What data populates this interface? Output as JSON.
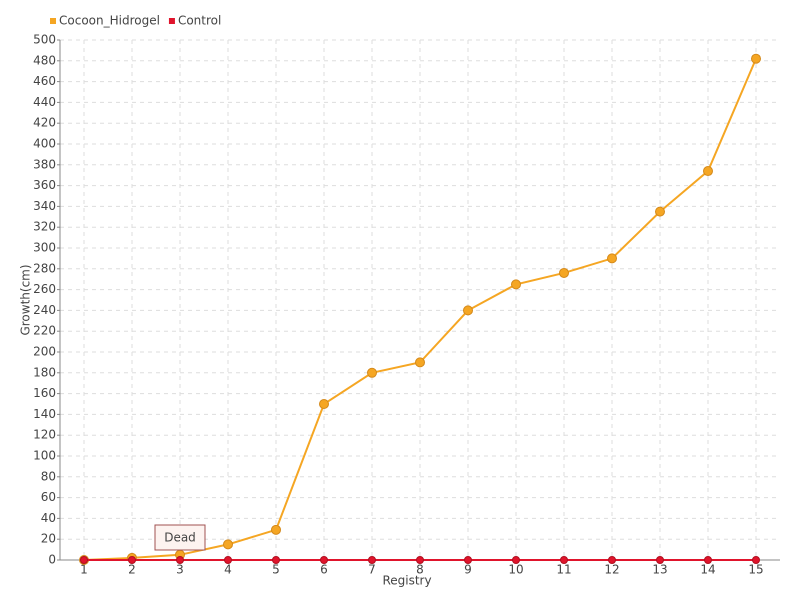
{
  "chart_data": {
    "type": "line",
    "categories": [
      "1",
      "2",
      "3",
      "4",
      "5",
      "6",
      "7",
      "8",
      "9",
      "10",
      "11",
      "12",
      "13",
      "14",
      "15"
    ],
    "series": [
      {
        "name": "Cocoon_Hidrogel",
        "color": "#f5a623",
        "values": [
          0,
          2,
          5,
          15,
          29,
          150,
          180,
          190,
          240,
          265,
          276,
          290,
          335,
          374,
          482
        ]
      },
      {
        "name": "Control",
        "color": "#e0142c",
        "values": [
          0,
          0,
          0,
          0,
          0,
          0,
          0,
          0,
          0,
          0,
          0,
          0,
          0,
          0,
          0
        ]
      }
    ],
    "annotation": "Dead",
    "x_label": "Registry",
    "y_label": "Growth(cm)",
    "ylim": [
      0,
      500
    ],
    "yticks": [
      0,
      20,
      40,
      60,
      80,
      100,
      120,
      140,
      160,
      180,
      200,
      220,
      240,
      260,
      280,
      300,
      320,
      340,
      360,
      380,
      400,
      420,
      440,
      460,
      480,
      500
    ],
    "grid": true,
    "legend": "top-left"
  }
}
